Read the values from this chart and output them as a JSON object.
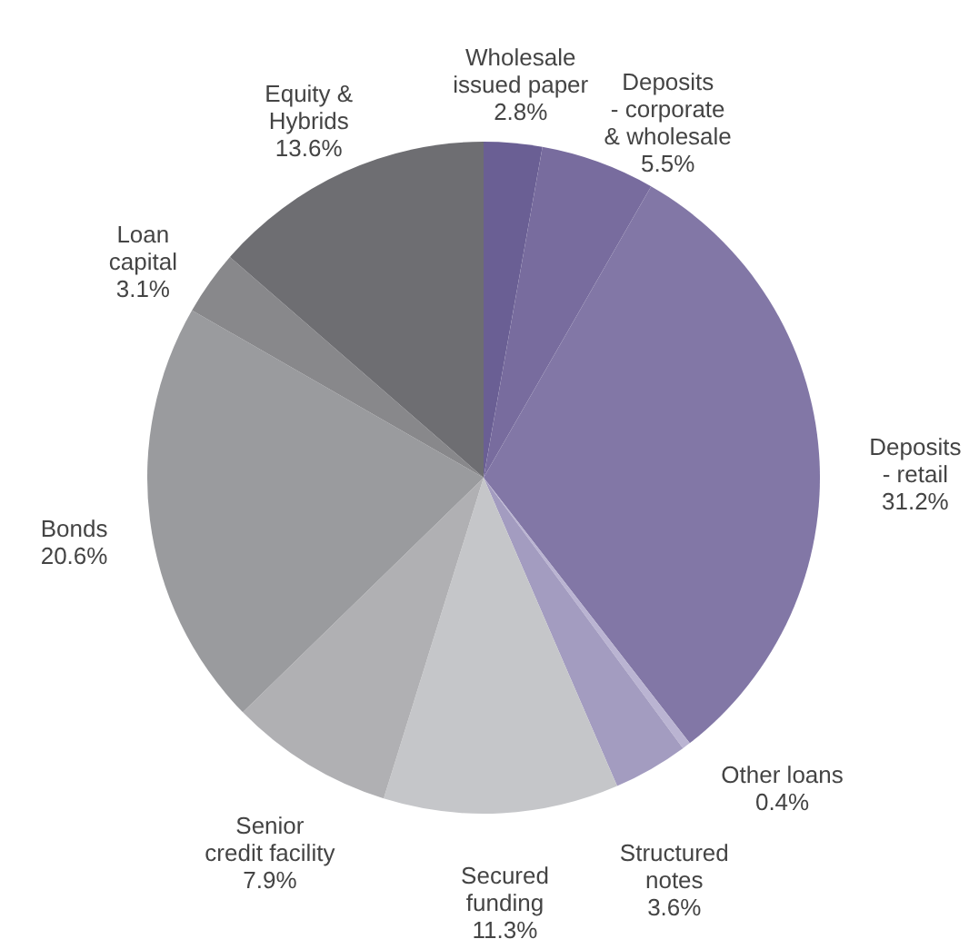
{
  "chart_data": {
    "type": "pie",
    "categories": [
      "Wholesale\nissued paper",
      "Deposits\n- corporate\n& wholesale",
      "Deposits\n- retail",
      "Other loans",
      "Structured\nnotes",
      "Secured\nfunding",
      "Senior\ncredit facility",
      "Bonds",
      "Loan\ncapital",
      "Equity &\nHybrids"
    ],
    "values": [
      2.8,
      5.5,
      31.2,
      0.4,
      3.6,
      11.3,
      7.9,
      20.6,
      3.1,
      13.6
    ],
    "value_labels": [
      "2.8%",
      "5.5%",
      "31.2%",
      "0.4%",
      "3.6%",
      "11.3%",
      "7.9%",
      "20.6%",
      "3.1%",
      "13.6%"
    ],
    "colors": [
      "#6a5f94",
      "#786c9e",
      "#8277a6",
      "#bab4d2",
      "#a39cc0",
      "#c5c6c9",
      "#b0b0b3",
      "#9a9b9e",
      "#88888b",
      "#6e6e72"
    ]
  }
}
